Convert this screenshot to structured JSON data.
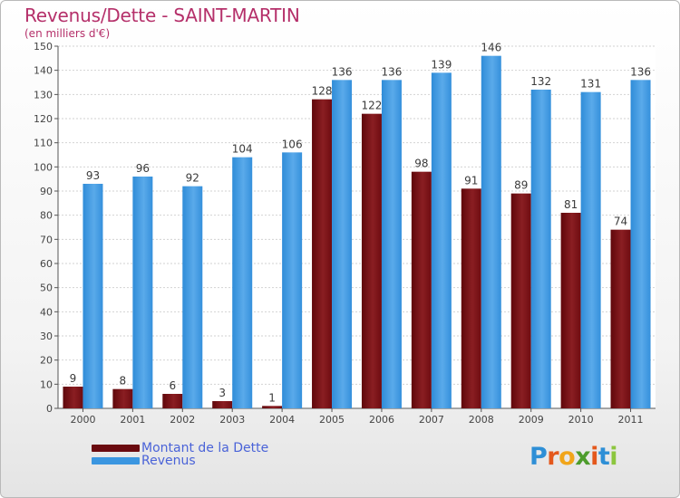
{
  "title": "Revenus/Dette - SAINT-MARTIN",
  "subtitle": "(en milliers d'€)",
  "colors": {
    "title": "#b5306a",
    "dette": "#7a0f14",
    "revenus": "#3b96e0",
    "legend_text": "#4a63d8"
  },
  "legend": [
    {
      "label": "Montant de la Dette",
      "color": "#6a0a0f"
    },
    {
      "label": "Revenus",
      "color": "#3b96e0"
    }
  ],
  "logo": {
    "letters": [
      "P",
      "r",
      "o",
      "x",
      "i",
      "t",
      "i"
    ],
    "colors": [
      "#2e8fd6",
      "#e4581c",
      "#f1a51a",
      "#4d9c2c",
      "#e4581c",
      "#2e8fd6",
      "#8cc63e"
    ]
  },
  "chart_data": {
    "type": "bar",
    "categories": [
      "2000",
      "2001",
      "2002",
      "2003",
      "2004",
      "2005",
      "2006",
      "2007",
      "2008",
      "2009",
      "2010",
      "2011"
    ],
    "series": [
      {
        "name": "Montant de la Dette",
        "values": [
          9,
          8,
          6,
          3,
          1,
          128,
          122,
          98,
          91,
          89,
          81,
          74
        ]
      },
      {
        "name": "Revenus",
        "values": [
          93,
          96,
          92,
          104,
          106,
          136,
          136,
          139,
          146,
          132,
          131,
          136
        ]
      }
    ],
    "yticks": [
      0,
      10,
      20,
      30,
      40,
      50,
      60,
      70,
      80,
      90,
      100,
      110,
      120,
      130,
      140,
      150
    ],
    "ylim": [
      0,
      150
    ],
    "grid": true,
    "data_labels": true
  }
}
